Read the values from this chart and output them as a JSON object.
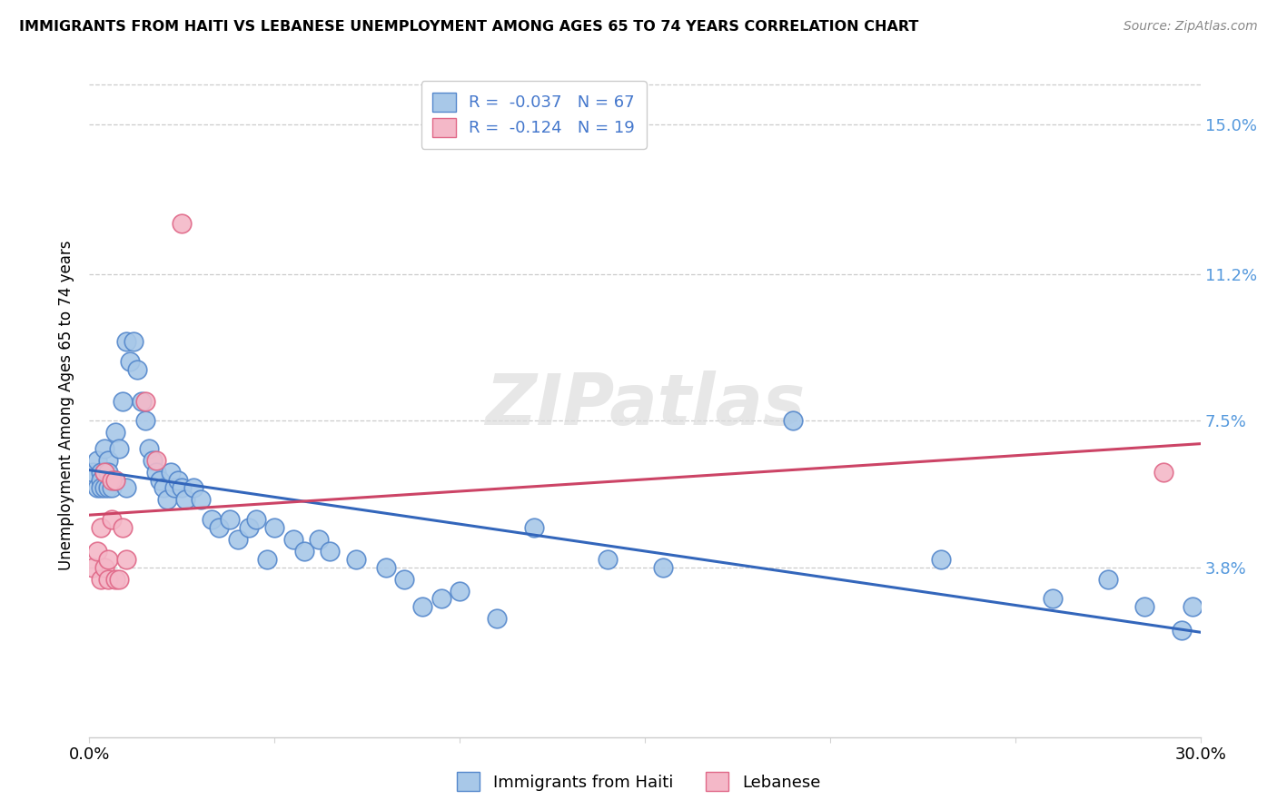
{
  "title": "IMMIGRANTS FROM HAITI VS LEBANESE UNEMPLOYMENT AMONG AGES 65 TO 74 YEARS CORRELATION CHART",
  "source": "Source: ZipAtlas.com",
  "ylabel": "Unemployment Among Ages 65 to 74 years",
  "xlim": [
    0.0,
    0.3
  ],
  "ylim": [
    -0.005,
    0.163
  ],
  "yticks": [
    0.038,
    0.075,
    0.112,
    0.15
  ],
  "ytick_labels": [
    "3.8%",
    "7.5%",
    "11.2%",
    "15.0%"
  ],
  "xticks": [
    0.0,
    0.05,
    0.1,
    0.15,
    0.2,
    0.25,
    0.3
  ],
  "xtick_labels": [
    "0.0%",
    "",
    "",
    "",
    "",
    "",
    "30.0%"
  ],
  "legend_r_haiti": "-0.037",
  "legend_n_haiti": "67",
  "legend_r_lebanese": "-0.124",
  "legend_n_lebanese": "19",
  "haiti_color": "#A8C8E8",
  "lebanese_color": "#F4B8C8",
  "haiti_edge_color": "#5588CC",
  "lebanese_edge_color": "#E06888",
  "haiti_line_color": "#3366BB",
  "lebanese_line_color": "#CC4466",
  "watermark": "ZIPatlas",
  "haiti_x": [
    0.001,
    0.002,
    0.002,
    0.003,
    0.003,
    0.003,
    0.004,
    0.004,
    0.004,
    0.005,
    0.005,
    0.005,
    0.006,
    0.006,
    0.007,
    0.007,
    0.008,
    0.009,
    0.01,
    0.01,
    0.011,
    0.012,
    0.013,
    0.014,
    0.015,
    0.016,
    0.017,
    0.018,
    0.019,
    0.02,
    0.021,
    0.022,
    0.023,
    0.024,
    0.025,
    0.026,
    0.028,
    0.03,
    0.033,
    0.035,
    0.038,
    0.04,
    0.043,
    0.045,
    0.048,
    0.05,
    0.055,
    0.058,
    0.062,
    0.065,
    0.072,
    0.08,
    0.085,
    0.09,
    0.095,
    0.1,
    0.11,
    0.12,
    0.14,
    0.155,
    0.19,
    0.23,
    0.26,
    0.275,
    0.285,
    0.295,
    0.298
  ],
  "haiti_y": [
    0.062,
    0.065,
    0.058,
    0.062,
    0.06,
    0.058,
    0.068,
    0.062,
    0.058,
    0.065,
    0.062,
    0.058,
    0.06,
    0.058,
    0.072,
    0.06,
    0.068,
    0.08,
    0.095,
    0.058,
    0.09,
    0.095,
    0.088,
    0.08,
    0.075,
    0.068,
    0.065,
    0.062,
    0.06,
    0.058,
    0.055,
    0.062,
    0.058,
    0.06,
    0.058,
    0.055,
    0.058,
    0.055,
    0.05,
    0.048,
    0.05,
    0.045,
    0.048,
    0.05,
    0.04,
    0.048,
    0.045,
    0.042,
    0.045,
    0.042,
    0.04,
    0.038,
    0.035,
    0.028,
    0.03,
    0.032,
    0.025,
    0.048,
    0.04,
    0.038,
    0.075,
    0.04,
    0.03,
    0.035,
    0.028,
    0.022,
    0.028
  ],
  "lebanese_x": [
    0.001,
    0.002,
    0.003,
    0.003,
    0.004,
    0.004,
    0.005,
    0.005,
    0.006,
    0.006,
    0.007,
    0.007,
    0.008,
    0.009,
    0.01,
    0.015,
    0.018,
    0.025,
    0.29
  ],
  "lebanese_y": [
    0.038,
    0.042,
    0.048,
    0.035,
    0.062,
    0.038,
    0.04,
    0.035,
    0.06,
    0.05,
    0.06,
    0.035,
    0.035,
    0.048,
    0.04,
    0.08,
    0.065,
    0.125,
    0.062
  ]
}
